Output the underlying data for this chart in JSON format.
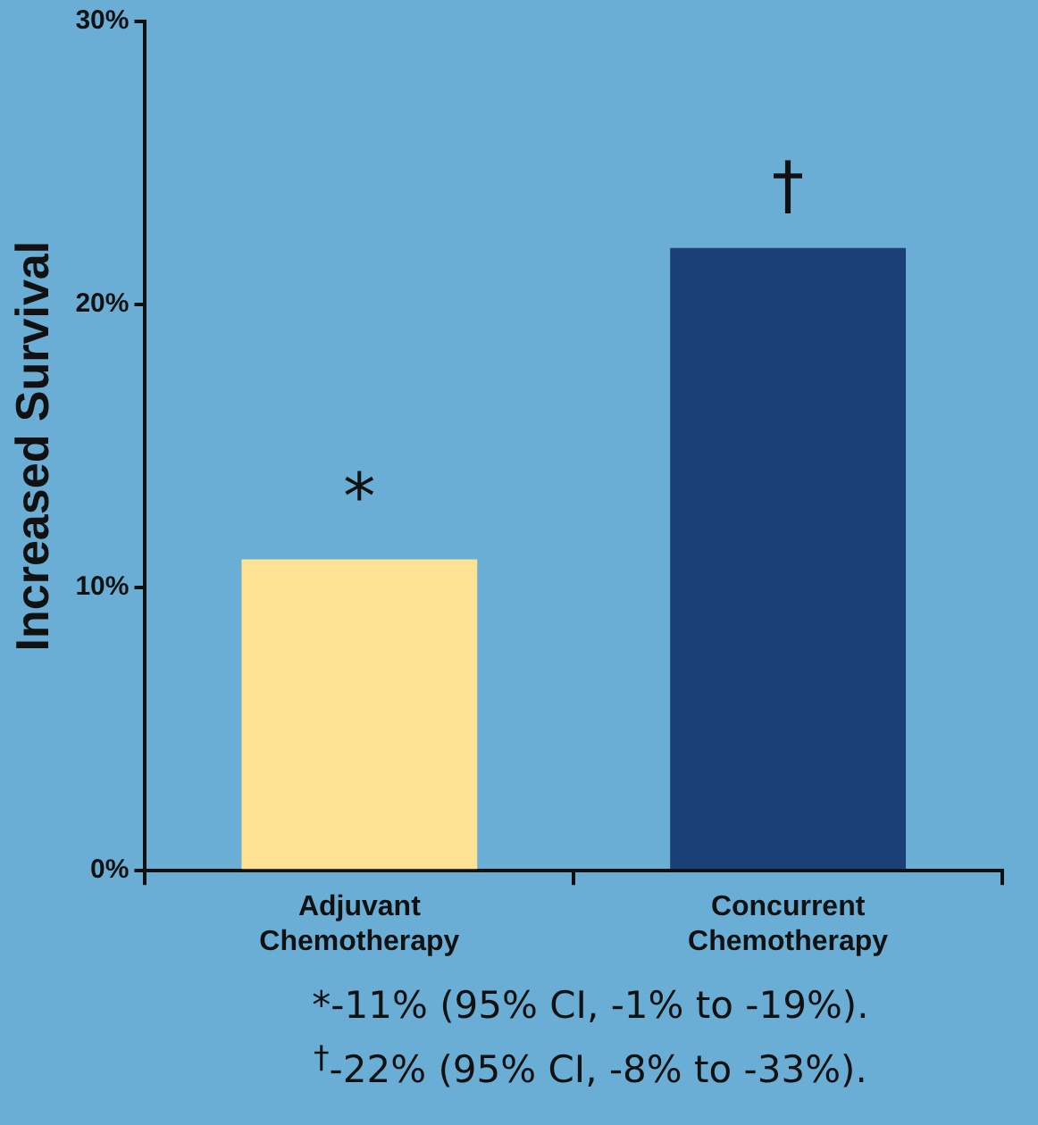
{
  "chart_data": {
    "type": "bar",
    "ylabel": "Increased Survival",
    "categories": [
      "Adjuvant Chemotherapy",
      "Concurrent Chemotherapy"
    ],
    "values": [
      11,
      22
    ],
    "colors": [
      "#fde293",
      "#1d3f78"
    ],
    "ylim": [
      0,
      30
    ],
    "yticks": [
      {
        "value": 0,
        "label": "0%"
      },
      {
        "value": 10,
        "label": "10%"
      },
      {
        "value": 20,
        "label": "20%"
      },
      {
        "value": 30,
        "label": "30%"
      }
    ],
    "annotations": [
      "*",
      "†",
      "*-11% (95% CI, -1% to -19%).",
      "$^{†}$-22% (95% CI, -8% to -33%)."
    ]
  }
}
